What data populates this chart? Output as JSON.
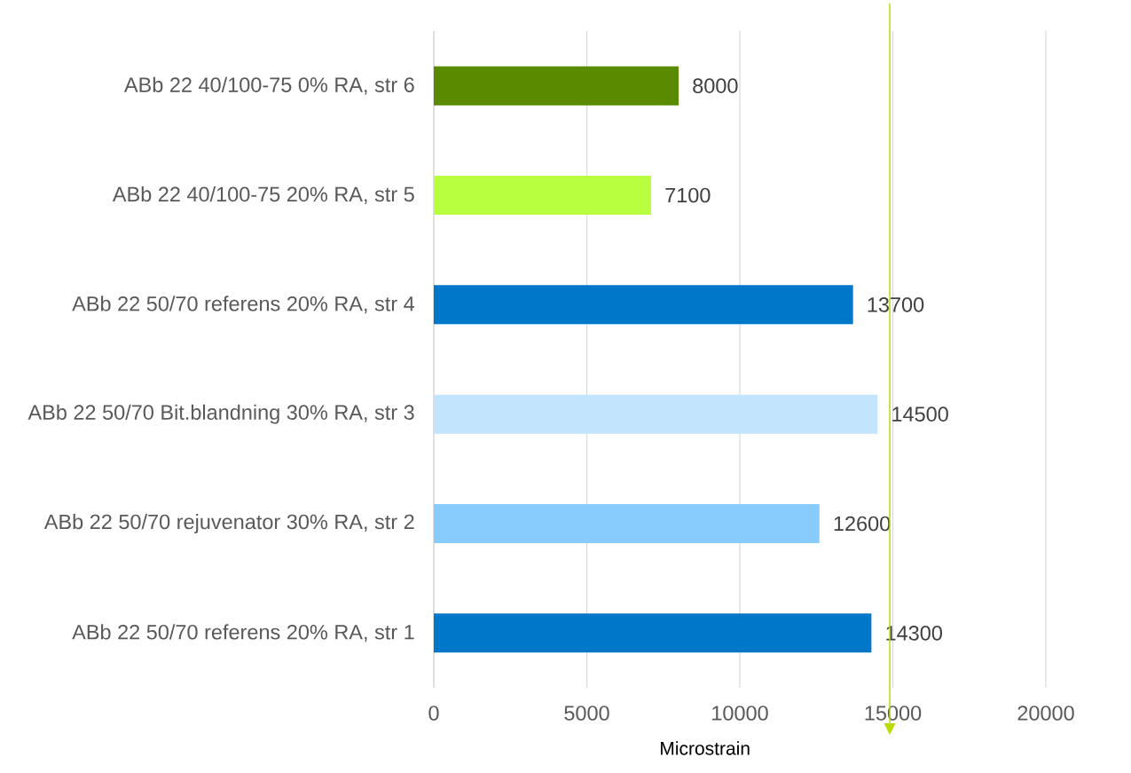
{
  "chart_data": {
    "type": "bar",
    "orientation": "horizontal",
    "categories": [
      "ABb 22 40/100-75 0% RA, str 6",
      "ABb 22 40/100-75 20% RA, str 5",
      "ABb 22 50/70 referens 20% RA, str 4",
      "ABb 22 50/70 Bit.blandning 30% RA, str 3",
      "ABb 22 50/70 rejuvenator 30% RA, str 2",
      "ABb 22 50/70 referens 20% RA, str 1"
    ],
    "values": [
      8000,
      7100,
      13700,
      14500,
      12600,
      14300
    ],
    "colors": [
      "#5a8a00",
      "#b8ff40",
      "#0077c8",
      "#c2e5fd",
      "#88ccfe",
      "#0077c8"
    ],
    "xlabel": "Microstrain",
    "xlim": [
      0,
      20000
    ],
    "xticks": [
      0,
      5000,
      10000,
      15000,
      20000
    ],
    "grid": "x",
    "data_labels": true,
    "ref_lines": [
      {
        "axis": "x",
        "value": 14900,
        "color": "#bcd900"
      }
    ]
  }
}
